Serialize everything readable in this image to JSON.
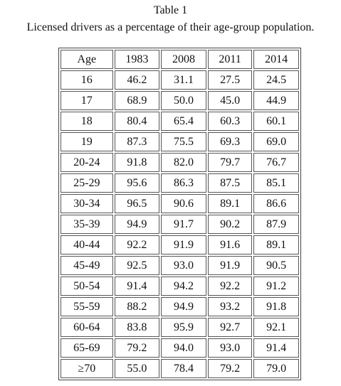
{
  "header": {
    "title": "Table 1",
    "subtitle": "Licensed drivers as a percentage of their age-group population."
  },
  "table": {
    "columns": [
      "Age",
      "1983",
      "2008",
      "2011",
      "2014"
    ],
    "rows": [
      [
        "16",
        "46.2",
        "31.1",
        "27.5",
        "24.5"
      ],
      [
        "17",
        "68.9",
        "50.0",
        "45.0",
        "44.9"
      ],
      [
        "18",
        "80.4",
        "65.4",
        "60.3",
        "60.1"
      ],
      [
        "19",
        "87.3",
        "75.5",
        "69.3",
        "69.0"
      ],
      [
        "20-24",
        "91.8",
        "82.0",
        "79.7",
        "76.7"
      ],
      [
        "25-29",
        "95.6",
        "86.3",
        "87.5",
        "85.1"
      ],
      [
        "30-34",
        "96.5",
        "90.6",
        "89.1",
        "86.6"
      ],
      [
        "35-39",
        "94.9",
        "91.7",
        "90.2",
        "87.9"
      ],
      [
        "40-44",
        "92.2",
        "91.9",
        "91.6",
        "89.1"
      ],
      [
        "45-49",
        "92.5",
        "93.0",
        "91.9",
        "90.5"
      ],
      [
        "50-54",
        "91.4",
        "94.2",
        "92.2",
        "91.2"
      ],
      [
        "55-59",
        "88.2",
        "94.9",
        "93.2",
        "91.8"
      ],
      [
        "60-64",
        "83.8",
        "95.9",
        "92.7",
        "92.1"
      ],
      [
        "65-69",
        "79.2",
        "94.0",
        "93.0",
        "91.4"
      ],
      [
        "≥70",
        "55.0",
        "78.4",
        "79.2",
        "79.0"
      ]
    ]
  }
}
